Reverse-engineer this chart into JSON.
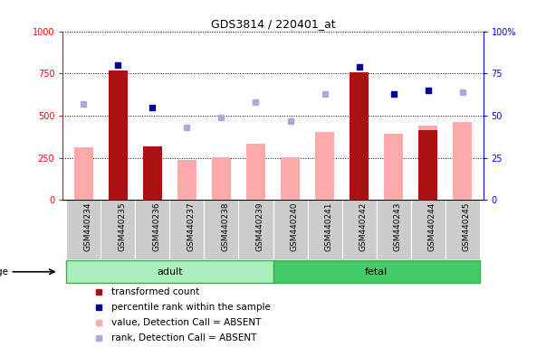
{
  "title": "GDS3814 / 220401_at",
  "samples": [
    "GSM440234",
    "GSM440235",
    "GSM440236",
    "GSM440237",
    "GSM440238",
    "GSM440239",
    "GSM440240",
    "GSM440241",
    "GSM440242",
    "GSM440243",
    "GSM440244",
    "GSM440245"
  ],
  "adult_count": 6,
  "fetal_count": 6,
  "transformed_count": [
    null,
    770,
    320,
    null,
    null,
    null,
    null,
    null,
    755,
    null,
    415,
    null
  ],
  "percentile_rank": [
    null,
    80,
    55,
    null,
    null,
    null,
    null,
    null,
    79,
    63,
    65,
    null
  ],
  "absent_value": [
    310,
    null,
    null,
    240,
    255,
    335,
    255,
    405,
    null,
    395,
    440,
    465
  ],
  "absent_rank": [
    57,
    null,
    null,
    43,
    49,
    58,
    47,
    63,
    null,
    null,
    null,
    64
  ],
  "left_ylim": [
    0,
    1000
  ],
  "right_ylim": [
    0,
    100
  ],
  "left_yticks": [
    0,
    250,
    500,
    750,
    1000
  ],
  "right_yticks": [
    0,
    25,
    50,
    75,
    100
  ],
  "bar_color_dark": "#aa1111",
  "bar_color_light": "#ffaaaa",
  "dot_color_dark": "#000099",
  "dot_color_light": "#aaaadd",
  "adult_color": "#aaeebb",
  "fetal_color": "#44cc66",
  "tick_box_color": "#cccccc",
  "legend_labels": [
    "transformed count",
    "percentile rank within the sample",
    "value, Detection Call = ABSENT",
    "rank, Detection Call = ABSENT"
  ],
  "legend_colors": [
    "#aa1111",
    "#000099",
    "#ffaaaa",
    "#aaaadd"
  ]
}
